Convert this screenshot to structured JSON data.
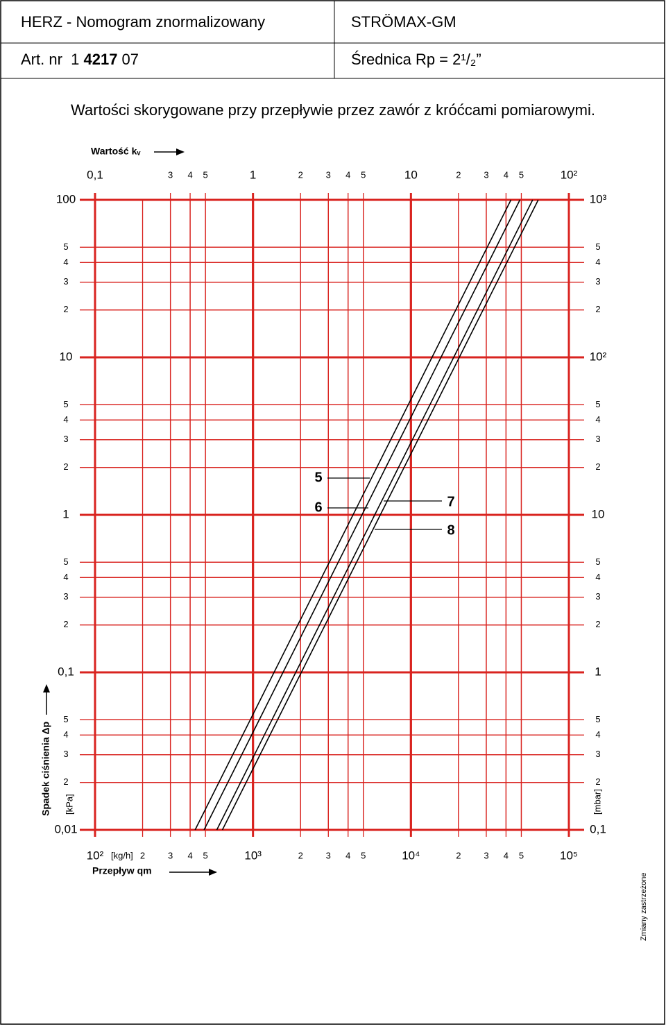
{
  "header": {
    "title": "HERZ - Nomogram znormalizowany",
    "product": "STRÖMAX-GM",
    "article_prefix": "Art. nr  1 ",
    "article_bold": "4217",
    "article_suffix": " 07",
    "diameter": "Średnica Rp = 2¹/₂”"
  },
  "subtitle": "Wartości skorygowane przy przepływie przez zawór z króćcami pomiarowymi.",
  "footer_note": "Zmiany zastrzeżone",
  "chart_data": {
    "type": "line",
    "log_scale": true,
    "grid": true,
    "grid_color": "#d9231f",
    "x_label": "Przepływ qm",
    "x_unit": "[kg/h]",
    "x2_label": "Wartość kᵥ",
    "y_label": "Spadek ciśnienia Δp",
    "y_unit": "[kPa]",
    "y2_unit": "[mbar]",
    "xlim": [
      100,
      100000
    ],
    "xticks": [
      {
        "value": 100,
        "label": "10²"
      },
      {
        "value": 200,
        "label": "2"
      },
      {
        "value": 300,
        "label": "3"
      },
      {
        "value": 400,
        "label": "4"
      },
      {
        "value": 500,
        "label": "5"
      },
      {
        "value": 1000,
        "label": "10³"
      },
      {
        "value": 2000,
        "label": "2"
      },
      {
        "value": 3000,
        "label": "3"
      },
      {
        "value": 4000,
        "label": "4"
      },
      {
        "value": 5000,
        "label": "5"
      },
      {
        "value": 10000,
        "label": "10⁴"
      },
      {
        "value": 20000,
        "label": "2"
      },
      {
        "value": 30000,
        "label": "3"
      },
      {
        "value": 40000,
        "label": "4"
      },
      {
        "value": 50000,
        "label": "5"
      },
      {
        "value": 100000,
        "label": "10⁵"
      }
    ],
    "x2lim": [
      0.1,
      100
    ],
    "x2ticks": [
      {
        "value": 0.1,
        "label": "0,1"
      },
      {
        "value": 0.3,
        "label": "3"
      },
      {
        "value": 0.4,
        "label": "4"
      },
      {
        "value": 0.5,
        "label": "5"
      },
      1,
      2,
      3,
      4,
      5,
      10,
      {
        "value": 20,
        "label": "2"
      },
      {
        "value": 30,
        "label": "3"
      },
      {
        "value": 40,
        "label": "4"
      },
      {
        "value": 50,
        "label": "5"
      },
      {
        "value": 100,
        "label": "10²"
      }
    ],
    "ylim": [
      0.01,
      100
    ],
    "yticks": [
      {
        "value": 0.01,
        "label": "0,01"
      },
      {
        "value": 0.02,
        "label": "2"
      },
      {
        "value": 0.03,
        "label": "3"
      },
      {
        "value": 0.04,
        "label": "4"
      },
      {
        "value": 0.05,
        "label": "5"
      },
      {
        "value": 0.1,
        "label": "0,1"
      },
      {
        "value": 0.2,
        "label": "2"
      },
      {
        "value": 0.3,
        "label": "3"
      },
      {
        "value": 0.4,
        "label": "4"
      },
      {
        "value": 0.5,
        "label": "5"
      },
      1,
      2,
      3,
      4,
      5,
      10,
      {
        "value": 20,
        "label": "2"
      },
      {
        "value": 30,
        "label": "3"
      },
      {
        "value": 40,
        "label": "4"
      },
      {
        "value": 50,
        "label": "5"
      },
      100
    ],
    "y2lim": [
      0.1,
      1000
    ],
    "y2ticks": [
      {
        "value": 0.1,
        "label": "0,1"
      },
      {
        "value": 0.2,
        "label": "2"
      },
      {
        "value": 0.3,
        "label": "3"
      },
      {
        "value": 0.4,
        "label": "4"
      },
      {
        "value": 0.5,
        "label": "5"
      },
      1,
      2,
      3,
      4,
      5,
      10,
      {
        "value": 20,
        "label": "2"
      },
      {
        "value": 30,
        "label": "3"
      },
      {
        "value": 40,
        "label": "4"
      },
      {
        "value": 50,
        "label": "5"
      },
      {
        "value": 100,
        "label": "10²"
      },
      {
        "value": 200,
        "label": "2"
      },
      {
        "value": 300,
        "label": "3"
      },
      {
        "value": 400,
        "label": "4"
      },
      {
        "value": 500,
        "label": "5"
      },
      {
        "value": 1000,
        "label": "10³"
      }
    ],
    "series": [
      {
        "name": "5",
        "color": "#000000",
        "x": [
          430,
          43000
        ],
        "values": [
          0.01,
          100
        ]
      },
      {
        "name": "6",
        "color": "#000000",
        "x": [
          490,
          49000
        ],
        "values": [
          0.01,
          100
        ]
      },
      {
        "name": "7",
        "color": "#000000",
        "x": [
          590,
          59000
        ],
        "values": [
          0.01,
          100
        ]
      },
      {
        "name": "8",
        "color": "#000000",
        "x": [
          640,
          64000
        ],
        "values": [
          0.01,
          100
        ]
      }
    ]
  }
}
